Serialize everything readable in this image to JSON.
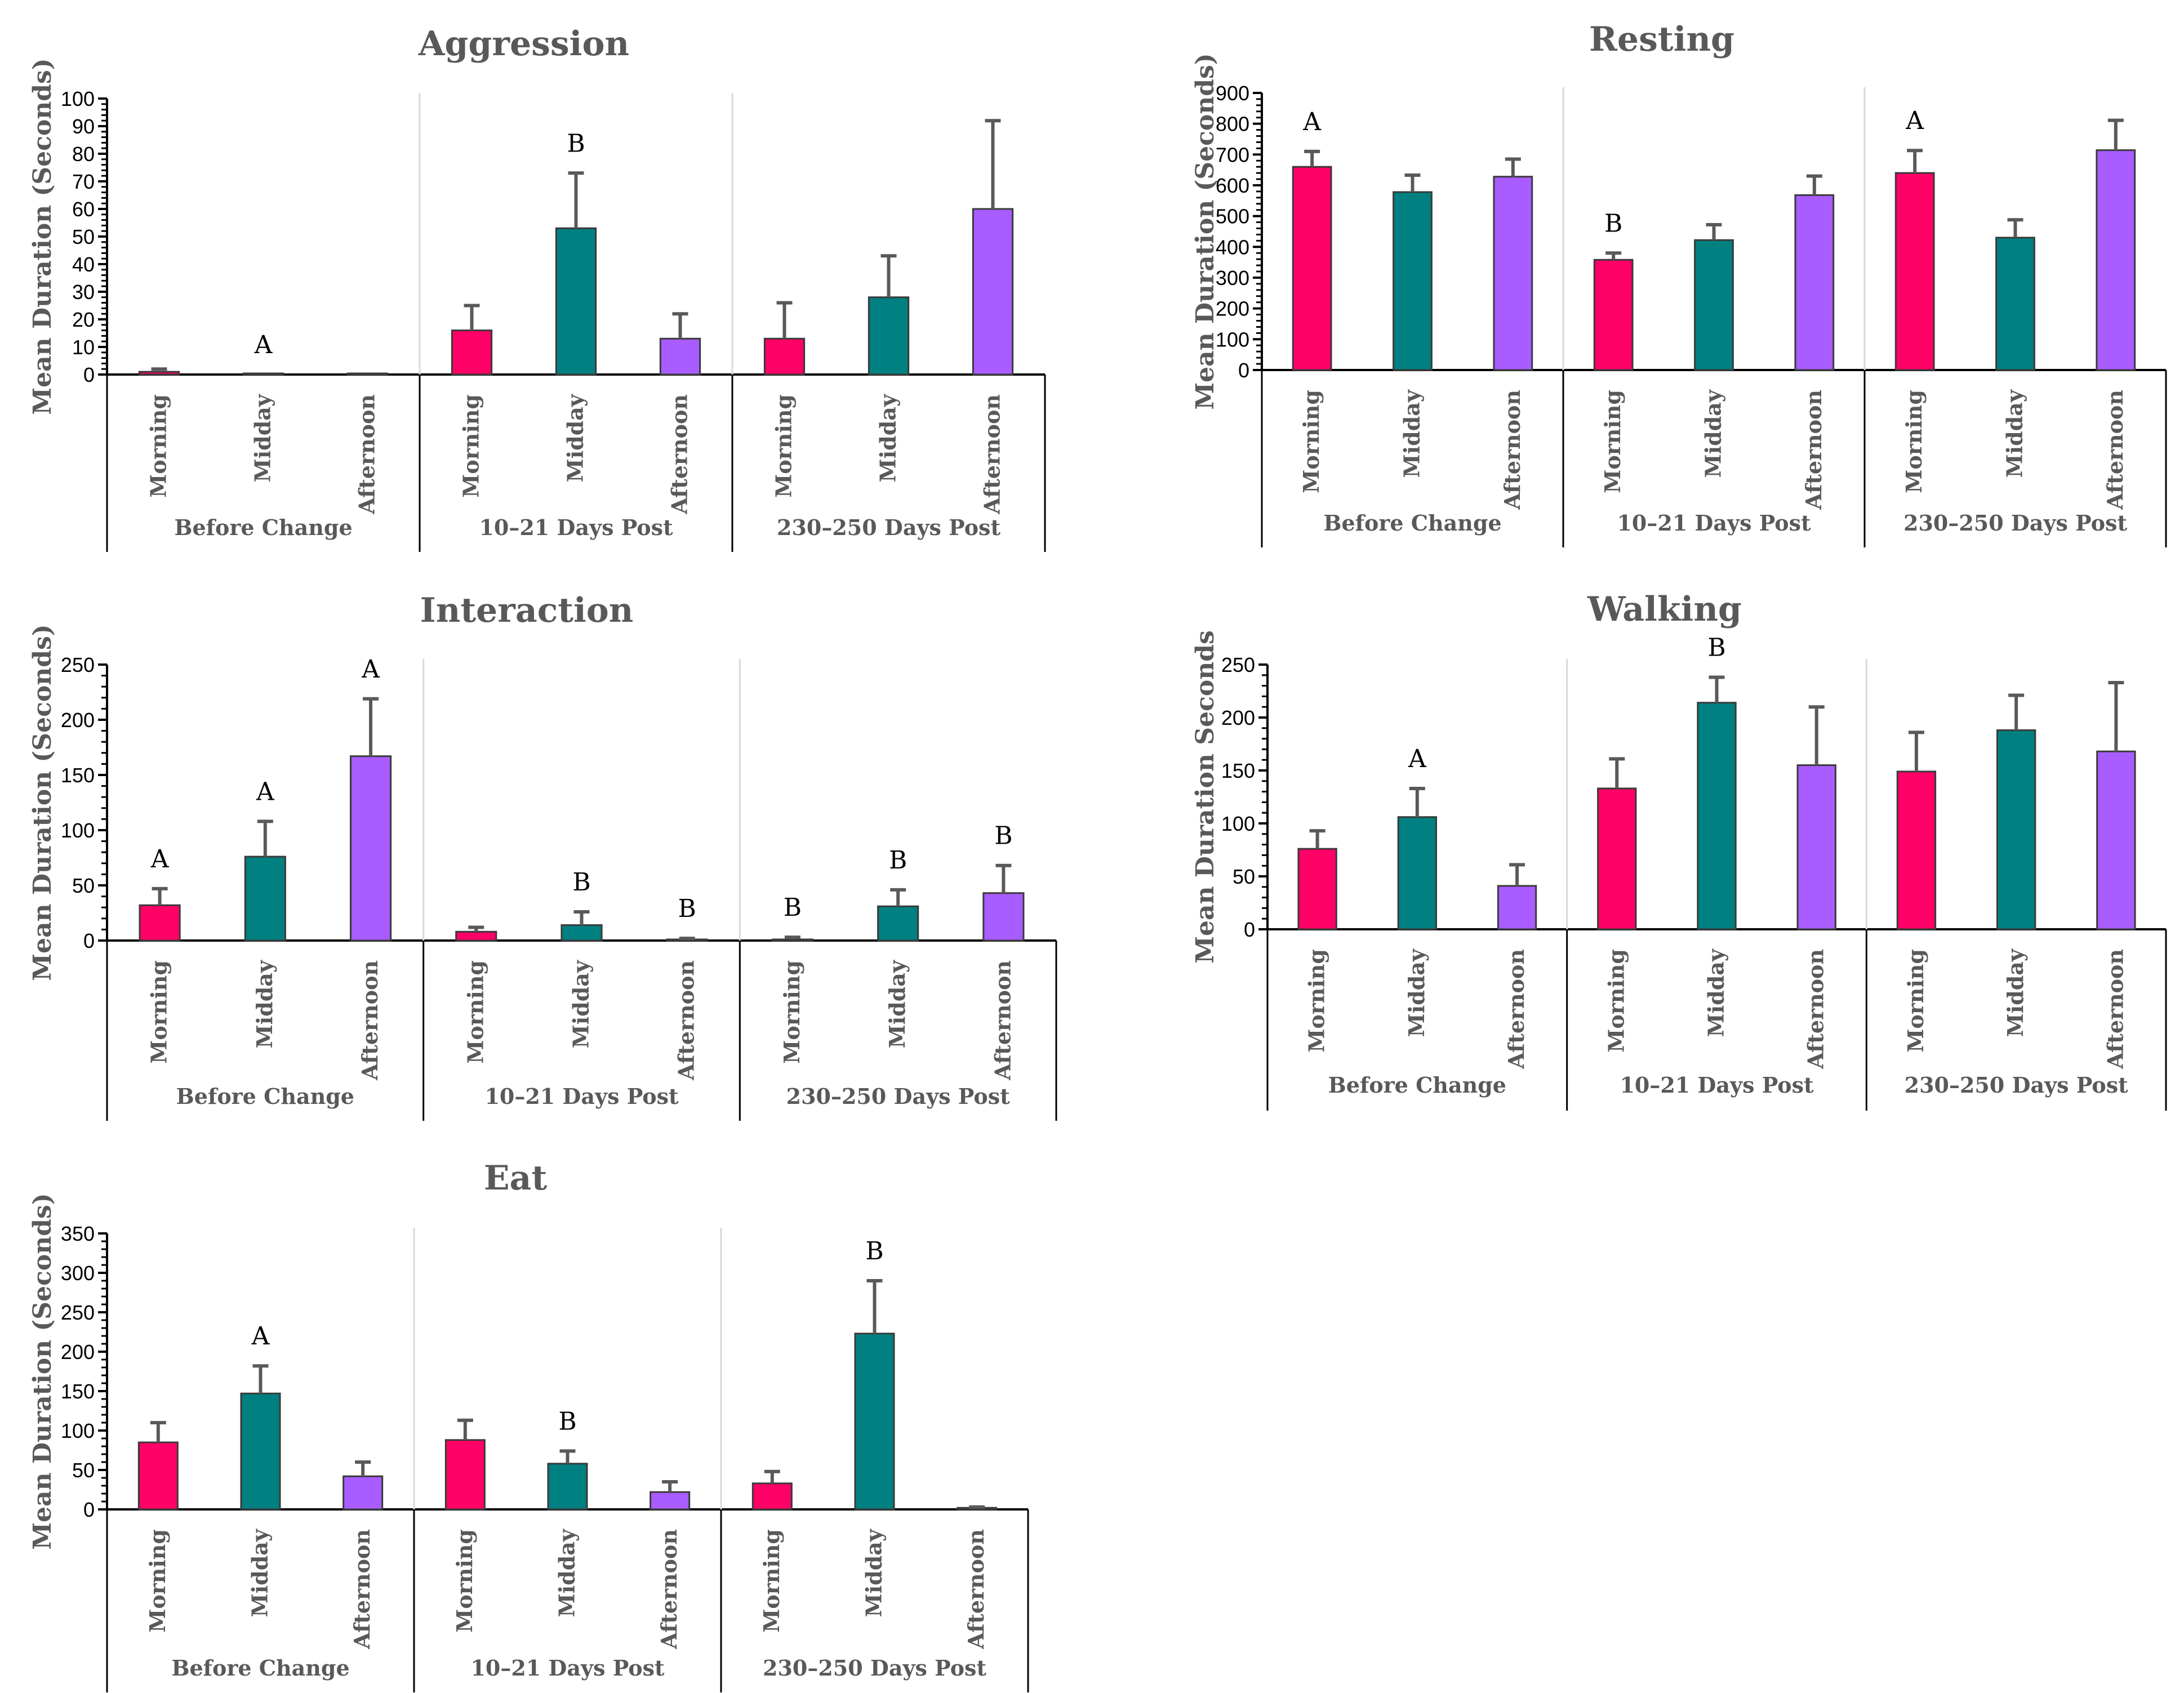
{
  "colors": {
    "Morning": "#ff0066",
    "Midday": "#008080",
    "Afternoon": "#a95cff",
    "err": "#595959"
  },
  "chart_data": [
    {
      "type": "bar",
      "title": "Aggression",
      "ylabel": "Mean Duration (Seconds)",
      "ylim": [
        0,
        100
      ],
      "yticks": [
        "0",
        "10",
        "20",
        "30",
        "40",
        "50",
        "60",
        "70",
        "80",
        "90",
        "100"
      ],
      "groups": [
        "Before Change",
        "10–21 Days Post",
        "230–250 Days Post"
      ],
      "categories": [
        "Morning",
        "Midday",
        "Afternoon"
      ],
      "values": [
        [
          1,
          0,
          0
        ],
        [
          16,
          53,
          13
        ],
        [
          13,
          28,
          60
        ]
      ],
      "errors": [
        [
          1,
          0,
          0
        ],
        [
          9,
          20,
          9
        ],
        [
          13,
          15,
          32
        ]
      ],
      "letters": [
        [
          "",
          "A",
          ""
        ],
        [
          "",
          "B",
          ""
        ],
        [
          "",
          "",
          ""
        ]
      ]
    },
    {
      "type": "bar",
      "title": "Resting",
      "ylabel": "Mean Duration (Seconds)",
      "ylim": [
        0,
        900
      ],
      "yticks": [
        "0",
        "100",
        "200",
        "300",
        "400",
        "500",
        "600",
        "700",
        "800",
        "900"
      ],
      "groups": [
        "Before Change",
        "10–21 Days Post",
        "230–250 Days Post"
      ],
      "categories": [
        "Morning",
        "Midday",
        "Afternoon"
      ],
      "values": [
        [
          660,
          578,
          628
        ],
        [
          358,
          422,
          568
        ],
        [
          640,
          430,
          714
        ]
      ],
      "errors": [
        [
          50,
          55,
          57
        ],
        [
          22,
          50,
          62
        ],
        [
          73,
          58,
          97
        ]
      ],
      "letters": [
        [
          "A",
          "",
          ""
        ],
        [
          "B",
          "",
          ""
        ],
        [
          "A",
          "",
          ""
        ]
      ]
    },
    {
      "type": "bar",
      "title": "Interaction",
      "ylabel": "Mean Duration (Seconds)",
      "ylim": [
        0,
        250
      ],
      "yticks": [
        "0",
        "50",
        "100",
        "150",
        "200",
        "250"
      ],
      "groups": [
        "Before Change",
        "10–21 Days Post",
        "230–250 Days Post"
      ],
      "categories": [
        "Morning",
        "Midday",
        "Afternoon"
      ],
      "values": [
        [
          32,
          76,
          167
        ],
        [
          8,
          14,
          1
        ],
        [
          1,
          31,
          43
        ]
      ],
      "errors": [
        [
          15,
          32,
          52
        ],
        [
          4,
          12,
          1
        ],
        [
          2,
          15,
          25
        ]
      ],
      "letters": [
        [
          "A",
          "A",
          "A"
        ],
        [
          "",
          "B",
          "B"
        ],
        [
          "B",
          "B",
          "B"
        ]
      ]
    },
    {
      "type": "bar",
      "title": "Walking",
      "ylabel": "Mean Duration Seconds",
      "ylim": [
        0,
        250
      ],
      "yticks": [
        "0",
        "50",
        "100",
        "150",
        "200",
        "250"
      ],
      "groups": [
        "Before Change",
        "10–21 Days Post",
        "230–250 Days Post"
      ],
      "categories": [
        "Morning",
        "Midday",
        "Afternoon"
      ],
      "values": [
        [
          76,
          106,
          41
        ],
        [
          133,
          214,
          155
        ],
        [
          149,
          188,
          168
        ]
      ],
      "errors": [
        [
          17,
          27,
          20
        ],
        [
          28,
          24,
          55
        ],
        [
          37,
          33,
          65
        ]
      ],
      "letters": [
        [
          "",
          "A",
          ""
        ],
        [
          "",
          "B",
          ""
        ],
        [
          "",
          "",
          ""
        ]
      ]
    },
    {
      "type": "bar",
      "title": "Eat",
      "ylabel": "Mean Duration (Seconds)",
      "ylim": [
        0,
        350
      ],
      "yticks": [
        "0",
        "50",
        "100",
        "150",
        "200",
        "250",
        "300",
        "350"
      ],
      "groups": [
        "Before Change",
        "10–21 Days Post",
        "230–250 Days Post"
      ],
      "categories": [
        "Morning",
        "Midday",
        "Afternoon"
      ],
      "values": [
        [
          85,
          147,
          42
        ],
        [
          88,
          58,
          22
        ],
        [
          33,
          223,
          2
        ]
      ],
      "errors": [
        [
          25,
          35,
          18
        ],
        [
          25,
          16,
          13
        ],
        [
          15,
          67,
          1
        ]
      ],
      "letters": [
        [
          "",
          "A",
          ""
        ],
        [
          "",
          "B",
          ""
        ],
        [
          "",
          "B",
          ""
        ]
      ]
    }
  ]
}
